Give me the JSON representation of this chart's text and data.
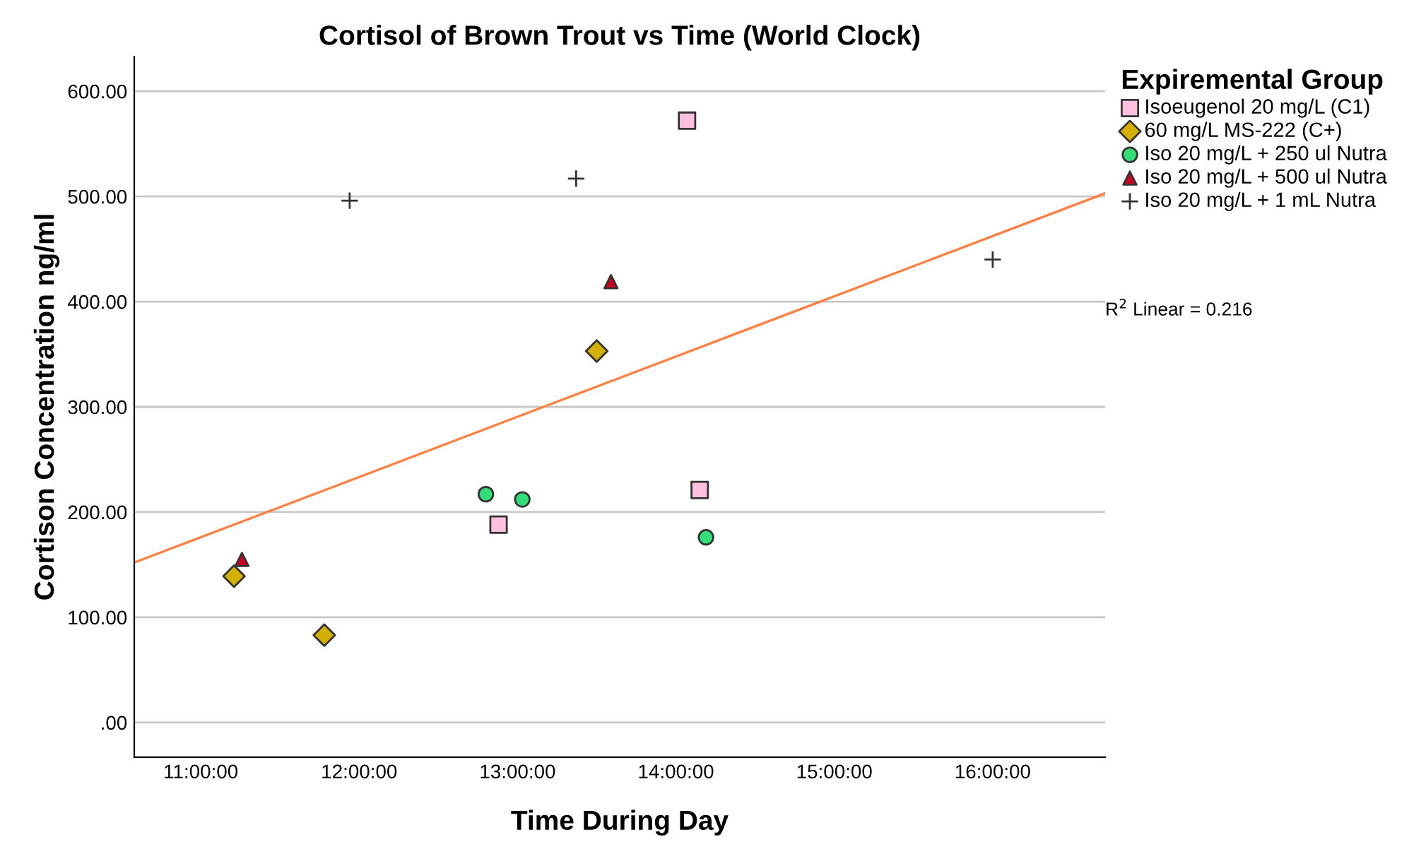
{
  "chart_data": {
    "type": "scatter",
    "title": "Cortisol of Brown Trout vs Time (World Clock)",
    "xlabel": "Time During Day",
    "ylabel": "Cortison Concentration ng/ml",
    "legend_title": "Expiremental Group",
    "series": [
      {
        "name": "Isoeugenol 20 mg/L (C1)",
        "color": "#ffc0e0",
        "marker": "square",
        "x": [
          14.07,
          12.88,
          14.15
        ],
        "values": [
          572,
          188,
          221
        ]
      },
      {
        "name": "60 mg/L MS-222 (C+)",
        "color": "#d4b000",
        "marker": "diamond",
        "x": [
          11.21,
          11.78,
          13.5
        ],
        "values": [
          139,
          83,
          353
        ]
      },
      {
        "name": "Iso 20 mg/L + 250 ul Nutra",
        "color": "#33dd77",
        "marker": "circle",
        "x": [
          12.8,
          13.03,
          14.19
        ],
        "values": [
          217,
          212,
          176
        ]
      },
      {
        "name": "Iso 20 mg/L + 500 ul Nutra",
        "color": "#cc0022",
        "marker": "triangle",
        "x": [
          11.26,
          13.59
        ],
        "values": [
          155,
          419
        ]
      },
      {
        "name": "Iso 20 mg/L + 1 mL Nutra",
        "color": "#333333",
        "marker": "cross",
        "x": [
          11.94,
          13.37,
          16.0
        ],
        "values": [
          496,
          517,
          440
        ]
      },
      {
        "type": "line",
        "color": "#ff8040",
        "x": [
          10.58,
          16.71
        ],
        "values": [
          152,
          503
        ]
      }
    ],
    "annotations": [
      "R$^{2}$ Linear = 0.216"
    ],
    "xlim": [
      10.58,
      16.71
    ],
    "ylim": [
      -33,
      633
    ],
    "xticks": [
      {
        "value": 11,
        "label": "11:00:00"
      },
      {
        "value": 12,
        "label": "12:00:00"
      },
      {
        "value": 13,
        "label": "13:00:00"
      },
      {
        "value": 14,
        "label": "14:00:00"
      },
      {
        "value": 15,
        "label": "15:00:00"
      },
      {
        "value": 16,
        "label": "16:00:00"
      }
    ],
    "yticks": [
      {
        "value": 0,
        "label": ".00"
      },
      {
        "value": 100,
        "label": "100.00"
      },
      {
        "value": 200,
        "label": "200.00"
      },
      {
        "value": 300,
        "label": "300.00"
      },
      {
        "value": 400,
        "label": "400.00"
      },
      {
        "value": 500,
        "label": "500.00"
      },
      {
        "value": 600,
        "label": "600.00"
      }
    ],
    "grid": "y",
    "legend": "right"
  }
}
